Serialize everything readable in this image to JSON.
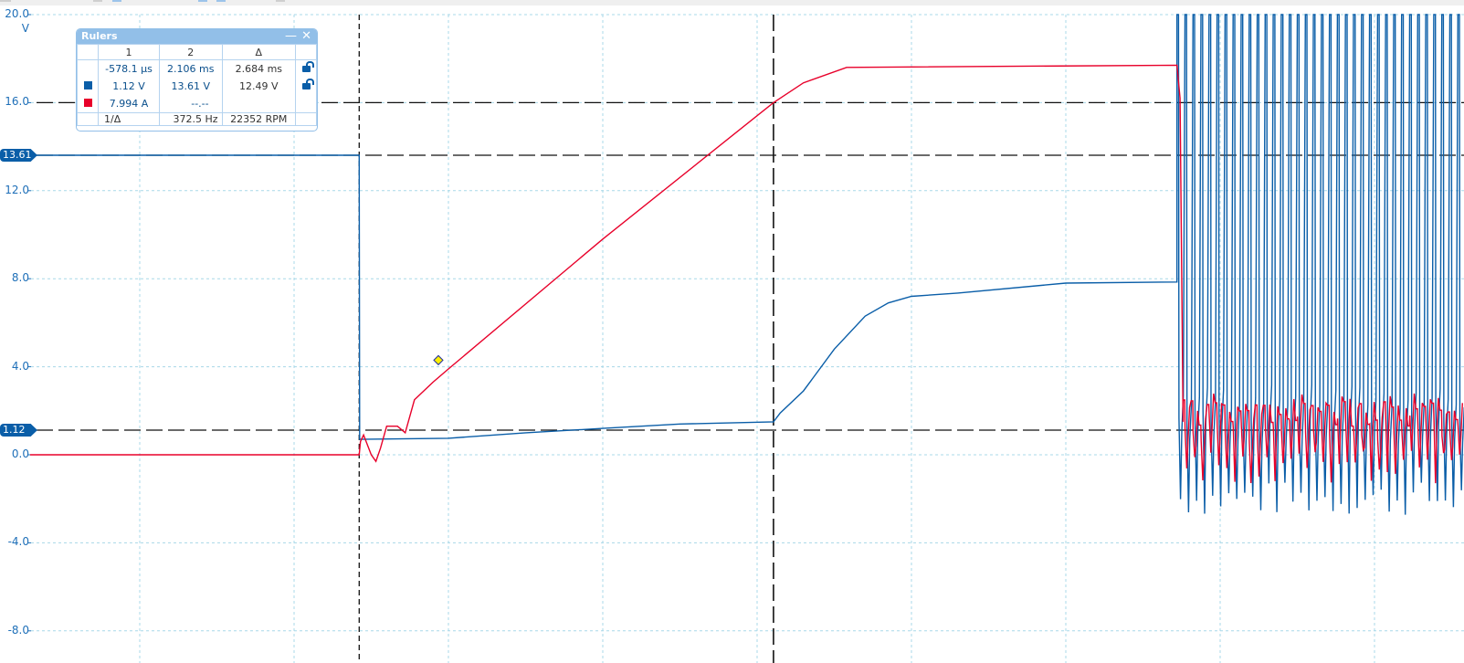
{
  "toolbar": {
    "visible": true
  },
  "axis": {
    "unit_label": "V",
    "ticks": [
      "20.0",
      "16.0",
      "12.0",
      "8.0",
      "4.0",
      "0.0",
      "-4.0",
      "-8.0"
    ]
  },
  "ruler_badges": {
    "ruler_high": "13.61",
    "ruler_low": "1.12"
  },
  "rulers_panel": {
    "title": "Rulers",
    "minimize_label": "—",
    "close_label": "✕",
    "headers": [
      "1",
      "2",
      "Δ"
    ],
    "time_row": {
      "r1": "-578.1 µs",
      "r2": "2.106 ms",
      "delta": "2.684 ms"
    },
    "channel_a": {
      "color": "#0a5ea8",
      "r1": "1.12 V",
      "r2": "13.61 V",
      "delta": "12.49 V"
    },
    "channel_b": {
      "color": "#e8002a",
      "r1": "7.994 A",
      "r2": "--.--",
      "delta": ""
    },
    "footer": {
      "label": "1/Δ",
      "freq": "372.5 Hz",
      "rpm": "22352 RPM"
    },
    "lock_icons": [
      "unlock-icon",
      "unlock-icon"
    ]
  },
  "chart_data": {
    "type": "line",
    "ylabel": "V",
    "ylim": [
      -9.4,
      20.0
    ],
    "xlim_ms": [
      -2.71,
      6.58
    ],
    "grid": true,
    "y_ticks": [
      20,
      16,
      12,
      8,
      4,
      0,
      -4,
      -8
    ],
    "time_rulers_ms": [
      -0.5781,
      2.106
    ],
    "level_rulers": [
      16.0,
      13.61,
      1.12
    ],
    "series": [
      {
        "color": "#0a5ea8",
        "points": [
          [
            -2.71,
            13.61
          ],
          [
            -0.578,
            13.61
          ],
          [
            -0.575,
            0.7
          ],
          [
            0,
            0.75
          ],
          [
            0.5,
            1.0
          ],
          [
            1.0,
            1.2
          ],
          [
            1.5,
            1.4
          ],
          [
            2.106,
            1.5
          ],
          [
            2.15,
            1.9
          ],
          [
            2.3,
            2.9
          ],
          [
            2.5,
            4.8
          ],
          [
            2.7,
            6.3
          ],
          [
            2.85,
            6.9
          ],
          [
            3.0,
            7.2
          ],
          [
            3.3,
            7.35
          ],
          [
            4.0,
            7.8
          ],
          [
            4.72,
            7.85
          ]
        ],
        "oscillation": {
          "start_ms": 4.72,
          "period_ms": 0.052,
          "range": [
            -2.8,
            20.0
          ]
        }
      },
      {
        "color": "#e8002a",
        "points": [
          [
            -2.71,
            0
          ],
          [
            -0.578,
            0
          ],
          [
            -0.57,
            0.6
          ],
          [
            -0.55,
            0.9
          ],
          [
            -0.5,
            0.0
          ],
          [
            -0.47,
            -0.3
          ],
          [
            -0.44,
            0.3
          ],
          [
            -0.4,
            1.3
          ],
          [
            -0.33,
            1.3
          ],
          [
            -0.28,
            1.0
          ],
          [
            -0.22,
            2.5
          ],
          [
            -0.1,
            3.3
          ],
          [
            0,
            3.9
          ],
          [
            1.0,
            9.8
          ],
          [
            2.106,
            16.0
          ],
          [
            2.3,
            16.9
          ],
          [
            2.58,
            17.6
          ],
          [
            4.72,
            17.7
          ],
          [
            4.74,
            16.2
          ],
          [
            4.76,
            1.5
          ]
        ],
        "oscillation": {
          "start_ms": 4.76,
          "period_ms": 0.052,
          "range": [
            -1.3,
            2.5
          ]
        }
      }
    ],
    "marker": {
      "x_ms": 0.0,
      "y": 4.3,
      "color": "#ffee00"
    }
  }
}
